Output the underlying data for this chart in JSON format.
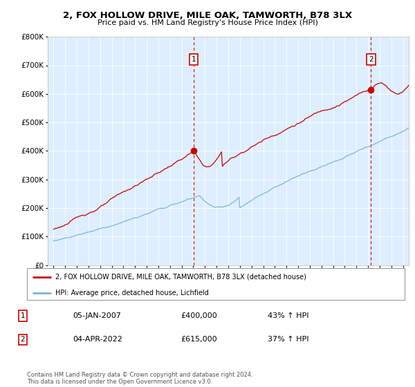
{
  "title": "2, FOX HOLLOW DRIVE, MILE OAK, TAMWORTH, B78 3LX",
  "subtitle": "Price paid vs. HM Land Registry's House Price Index (HPI)",
  "legend_property": "2, FOX HOLLOW DRIVE, MILE OAK, TAMWORTH, B78 3LX (detached house)",
  "legend_hpi": "HPI: Average price, detached house, Lichfield",
  "sale1_date": "05-JAN-2007",
  "sale1_price": "£400,000",
  "sale1_hpi": "43% ↑ HPI",
  "sale1_year": 2007.03,
  "sale1_value": 400000,
  "sale2_date": "04-APR-2022",
  "sale2_price": "£615,000",
  "sale2_hpi": "37% ↑ HPI",
  "sale2_year": 2022.25,
  "sale2_value": 615000,
  "footer": "Contains HM Land Registry data © Crown copyright and database right 2024.\nThis data is licensed under the Open Government Licence v3.0.",
  "property_color": "#cc0000",
  "hpi_color": "#7eb6d4",
  "bg_color": "#ddeeff",
  "ylim": [
    0,
    800000
  ],
  "xlim_start": 1994.5,
  "xlim_end": 2025.5
}
